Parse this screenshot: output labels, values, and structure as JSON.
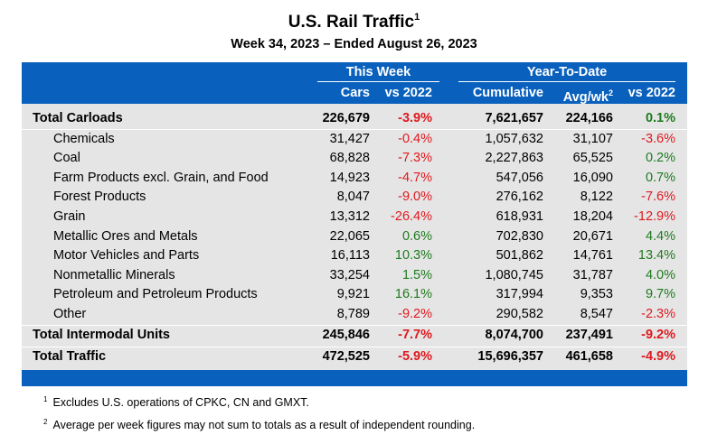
{
  "title": "U.S. Rail Traffic",
  "title_footnote": "1",
  "subtitle": "Week 34, 2023 – Ended August 26, 2023",
  "groups": {
    "this_week": "This Week",
    "ytd": "Year-To-Date"
  },
  "columns": {
    "cars": "Cars",
    "vs_week": "vs 2022",
    "cumulative": "Cumulative",
    "avg_wk": "Avg/wk",
    "avg_wk_footnote": "2",
    "vs_ytd": "vs 2022"
  },
  "colors": {
    "header_bg": "#0a61bd",
    "body_bg": "#e5e5e5",
    "negative": "#e0191f",
    "positive": "#1e7b1e"
  },
  "rows": [
    {
      "label": "Total Carloads",
      "cars": "226,679",
      "vs_week": "-3.9%",
      "cumulative": "7,621,657",
      "avg": "224,166",
      "vs_ytd": "0.1%"
    },
    {
      "label": "Chemicals",
      "cars": "31,427",
      "vs_week": "-0.4%",
      "cumulative": "1,057,632",
      "avg": "31,107",
      "vs_ytd": "-3.6%"
    },
    {
      "label": "Coal",
      "cars": "68,828",
      "vs_week": "-7.3%",
      "cumulative": "2,227,863",
      "avg": "65,525",
      "vs_ytd": "0.2%"
    },
    {
      "label": "Farm Products excl. Grain, and Food",
      "cars": "14,923",
      "vs_week": "-4.7%",
      "cumulative": "547,056",
      "avg": "16,090",
      "vs_ytd": "0.7%"
    },
    {
      "label": "Forest Products",
      "cars": "8,047",
      "vs_week": "-9.0%",
      "cumulative": "276,162",
      "avg": "8,122",
      "vs_ytd": "-7.6%"
    },
    {
      "label": "Grain",
      "cars": "13,312",
      "vs_week": "-26.4%",
      "cumulative": "618,931",
      "avg": "18,204",
      "vs_ytd": "-12.9%"
    },
    {
      "label": "Metallic Ores and Metals",
      "cars": "22,065",
      "vs_week": "0.6%",
      "cumulative": "702,830",
      "avg": "20,671",
      "vs_ytd": "4.4%"
    },
    {
      "label": "Motor Vehicles and Parts",
      "cars": "16,113",
      "vs_week": "10.3%",
      "cumulative": "501,862",
      "avg": "14,761",
      "vs_ytd": "13.4%"
    },
    {
      "label": "Nonmetallic Minerals",
      "cars": "33,254",
      "vs_week": "1.5%",
      "cumulative": "1,080,745",
      "avg": "31,787",
      "vs_ytd": "4.0%"
    },
    {
      "label": "Petroleum and Petroleum Products",
      "cars": "9,921",
      "vs_week": "16.1%",
      "cumulative": "317,994",
      "avg": "9,353",
      "vs_ytd": "9.7%"
    },
    {
      "label": "Other",
      "cars": "8,789",
      "vs_week": "-9.2%",
      "cumulative": "290,582",
      "avg": "8,547",
      "vs_ytd": "-2.3%"
    },
    {
      "label": "Total Intermodal Units",
      "cars": "245,846",
      "vs_week": "-7.7%",
      "cumulative": "8,074,700",
      "avg": "237,491",
      "vs_ytd": "-9.2%"
    },
    {
      "label": "Total Traffic",
      "cars": "472,525",
      "vs_week": "-5.9%",
      "cumulative": "15,696,357",
      "avg": "461,658",
      "vs_ytd": "-4.9%"
    }
  ],
  "footnotes": [
    {
      "mark": "1",
      "text": "Excludes U.S. operations of CPKC, CN and GMXT."
    },
    {
      "mark": "2",
      "text": "Average per week figures may not sum to totals as a result of independent rounding."
    }
  ]
}
